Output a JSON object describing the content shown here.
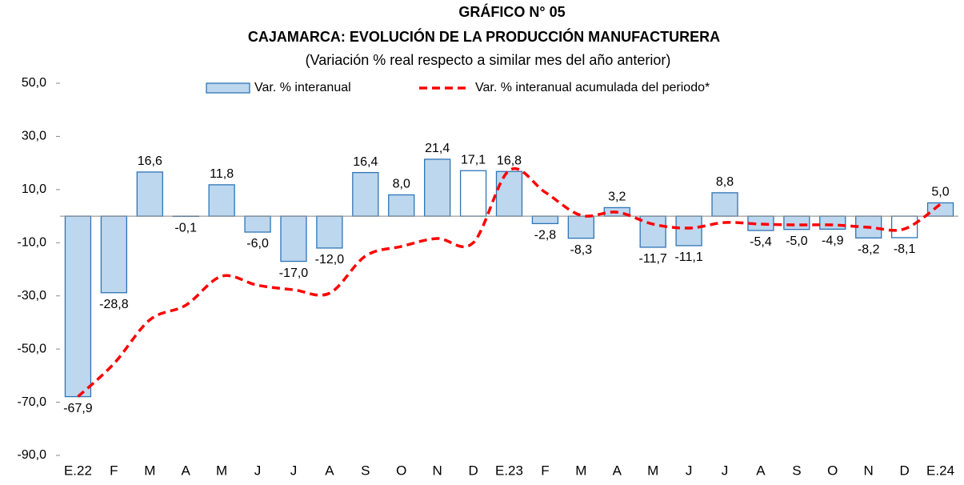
{
  "chart_data": {
    "type": "bar",
    "title": [
      "GRÁFICO N° 05",
      "CAJAMARCA: EVOLUCIÓN DE LA PRODUCCIÓN MANUFACTURERA"
    ],
    "subtitle": "(Variación % real respecto a similar mes del año anterior)",
    "categories": [
      "E.22",
      "F",
      "M",
      "A",
      "M",
      "J",
      "J",
      "A",
      "S",
      "O",
      "N",
      "D",
      "E.23",
      "F",
      "M",
      "A",
      "M",
      "J",
      "J",
      "A",
      "S",
      "O",
      "N",
      "D",
      "E.24"
    ],
    "series": [
      {
        "name": "Var. % interanual",
        "type": "bar",
        "color": "#bdd7ee",
        "edge_color": "#2e75b6",
        "colors": [
          "#bdd7ee",
          "#bdd7ee",
          "#bdd7ee",
          "#bdd7ee",
          "#bdd7ee",
          "#bdd7ee",
          "#bdd7ee",
          "#bdd7ee",
          "#bdd7ee",
          "#bdd7ee",
          "#bdd7ee",
          "#ffffff",
          "#bdd7ee",
          "#bdd7ee",
          "#bdd7ee",
          "#bdd7ee",
          "#bdd7ee",
          "#bdd7ee",
          "#bdd7ee",
          "#bdd7ee",
          "#bdd7ee",
          "#bdd7ee",
          "#bdd7ee",
          "#ffffff",
          "#bdd7ee"
        ],
        "values": [
          -67.9,
          -28.8,
          16.6,
          -0.1,
          11.8,
          -6.0,
          -17.0,
          -12.0,
          16.4,
          8.0,
          21.4,
          17.1,
          16.8,
          -2.8,
          -8.3,
          3.2,
          -11.7,
          -11.1,
          8.8,
          -5.4,
          -5.0,
          -4.9,
          -8.2,
          -8.1,
          5.0
        ],
        "value_labels": [
          "-67,9",
          "-28,8",
          "16,6",
          "-0,1",
          "11,8",
          "-6,0",
          "-17,0",
          "-12,0",
          "16,4",
          "8,0",
          "21,4",
          "17,1",
          "16,8",
          "-2,8",
          "-8,3",
          "3,2",
          "-11,7",
          "-11,1",
          "8,8",
          "-5,4",
          "-5,0",
          "-4,9",
          "-8,2",
          "-8,1",
          "5,0"
        ]
      },
      {
        "name": "Var. % interanual acumulada del periodo*",
        "type": "line",
        "color": "#ff0000",
        "dashed": true,
        "smooth": true,
        "values": [
          -67.9,
          -55.5,
          -39,
          -33.5,
          -22.6,
          -26,
          -27.7,
          -29,
          -15,
          -11.4,
          -8.4,
          -10,
          17.2,
          9,
          0.3,
          1.5,
          -3,
          -4.5,
          -2.4,
          -3,
          -3.3,
          -3.3,
          -4.2,
          -4.8,
          4.5
        ]
      }
    ],
    "ylim": [
      -90,
      50
    ],
    "yticks": [
      {
        "value": 50,
        "label": "50,0"
      },
      {
        "value": 30,
        "label": "30,0"
      },
      {
        "value": 10,
        "label": "10,0"
      },
      {
        "value": -10,
        "label": "-10,0"
      },
      {
        "value": -30,
        "label": "-30,0"
      },
      {
        "value": -50,
        "label": "-50,0"
      },
      {
        "value": -70,
        "label": "-70,0"
      },
      {
        "value": -90,
        "label": "-90,0"
      }
    ],
    "grid": false,
    "legend": "top"
  }
}
